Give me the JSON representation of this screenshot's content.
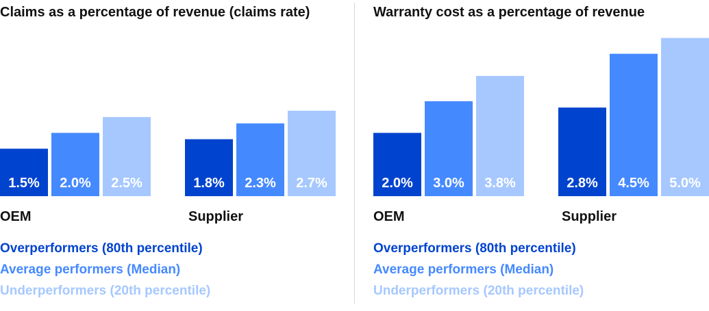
{
  "colors": {
    "over": "#0043ce",
    "avg": "#4589ff",
    "under": "#a6c8ff",
    "divider": "#d6d6d6"
  },
  "chart_data": [
    {
      "type": "bar",
      "title": "Claims as a percentage of revenue (claims rate)",
      "categories": [
        "OEM",
        "Supplier"
      ],
      "series": [
        {
          "name": "Overperformers (80th percentile)",
          "values": [
            1.5,
            1.8
          ],
          "labels": [
            "1.5%",
            "1.8%"
          ],
          "color": "#0043ce"
        },
        {
          "name": "Average performers (Median)",
          "values": [
            2.0,
            2.3
          ],
          "labels": [
            "2.0%",
            "2.3%"
          ],
          "color": "#4589ff"
        },
        {
          "name": "Underperformers (20th percentile)",
          "values": [
            2.5,
            2.7
          ],
          "labels": [
            "2.5%",
            "2.7%"
          ],
          "color": "#a6c8ff"
        }
      ],
      "ylim": [
        0,
        5.2
      ],
      "grid": false,
      "legend_position": "bottom-left"
    },
    {
      "type": "bar",
      "title": "Warranty cost as a percentage of revenue",
      "categories": [
        "OEM",
        "Supplier"
      ],
      "series": [
        {
          "name": "Overperformers (80th percentile)",
          "values": [
            2.0,
            2.8
          ],
          "labels": [
            "2.0%",
            "2.8%"
          ],
          "color": "#0043ce"
        },
        {
          "name": "Average performers (Median)",
          "values": [
            3.0,
            4.5
          ],
          "labels": [
            "3.0%",
            "4.5%"
          ],
          "color": "#4589ff"
        },
        {
          "name": "Underperformers (20th percentile)",
          "values": [
            3.8,
            5.0
          ],
          "labels": [
            "3.8%",
            "5.0%"
          ],
          "color": "#a6c8ff"
        }
      ],
      "ylim": [
        0,
        5.2
      ],
      "grid": false,
      "legend_position": "bottom-left"
    }
  ]
}
